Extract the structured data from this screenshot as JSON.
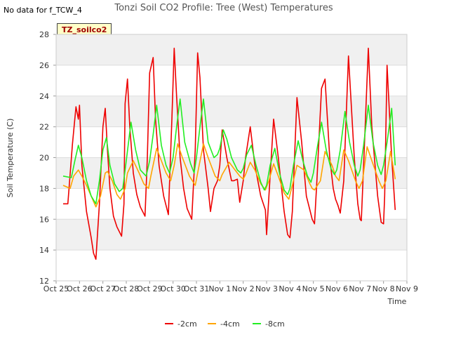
{
  "note": "No data for f_TCW_4",
  "tag": "TZ_soilco2",
  "chart_data": {
    "type": "line",
    "title": "Tonzi Soil CO2 Profile: Tree (West) Temperatures",
    "xlabel": "Time",
    "ylabel": "Soil Temperature (C)",
    "ylim": [
      12,
      28
    ],
    "yticks": [
      12,
      14,
      16,
      18,
      20,
      22,
      24,
      26,
      28
    ],
    "xlim": [
      0,
      15
    ],
    "xtick_labels": [
      "Oct 25",
      "Oct 26",
      "Oct 27",
      "Oct 28",
      "Oct 29",
      "Oct 30",
      "Oct 31",
      "Nov 1",
      "Nov 2",
      "Nov 3",
      "Nov 4",
      "Nov 5",
      "Nov 6",
      "Nov 7",
      "Nov 8",
      "Nov 9"
    ],
    "grid": true,
    "legend_position": "bottom",
    "series": [
      {
        "name": "-2cm",
        "color": "#ee0000",
        "x": [
          0.3,
          0.5,
          0.7,
          0.85,
          0.95,
          1.0,
          1.1,
          1.3,
          1.5,
          1.6,
          1.7,
          1.85,
          2.0,
          2.1,
          2.2,
          2.3,
          2.45,
          2.6,
          2.8,
          2.9,
          2.95,
          3.05,
          3.15,
          3.3,
          3.45,
          3.6,
          3.8,
          3.9,
          4.0,
          4.15,
          4.25,
          4.4,
          4.6,
          4.8,
          4.95,
          5.05,
          5.15,
          5.3,
          5.45,
          5.6,
          5.8,
          5.95,
          6.05,
          6.15,
          6.3,
          6.5,
          6.6,
          6.75,
          6.9,
          7.0,
          7.1,
          7.3,
          7.5,
          7.6,
          7.75,
          7.85,
          8.0,
          8.1,
          8.3,
          8.5,
          8.75,
          8.95,
          9.0,
          9.1,
          9.3,
          9.5,
          9.75,
          9.9,
          10.0,
          10.1,
          10.3,
          10.5,
          10.7,
          10.85,
          10.95,
          11.05,
          11.15,
          11.35,
          11.5,
          11.7,
          11.85,
          11.95,
          12.05,
          12.15,
          12.3,
          12.5,
          12.75,
          12.9,
          13.0,
          13.05,
          13.15,
          13.35,
          13.5,
          13.75,
          13.9,
          14.0,
          14.05,
          14.15,
          14.35,
          14.5
        ],
        "y": [
          17.0,
          17.0,
          20.9,
          23.3,
          22.5,
          23.4,
          19.5,
          16.5,
          14.8,
          13.8,
          13.4,
          17.0,
          22.0,
          23.2,
          20.4,
          18.0,
          16.2,
          15.5,
          14.9,
          17.0,
          23.5,
          25.1,
          22.0,
          19.0,
          17.6,
          16.8,
          16.2,
          20.0,
          25.5,
          26.5,
          22.5,
          19.5,
          17.5,
          16.3,
          22.5,
          27.1,
          24.0,
          20.0,
          18.0,
          16.7,
          16.0,
          20.5,
          26.8,
          25.2,
          20.5,
          18.0,
          16.5,
          18.0,
          18.5,
          19.5,
          21.8,
          20.0,
          18.5,
          18.5,
          18.6,
          17.1,
          18.5,
          20.0,
          22.0,
          19.5,
          17.5,
          16.6,
          15.0,
          17.5,
          22.5,
          20.0,
          16.5,
          15.0,
          14.8,
          16.5,
          23.9,
          21.0,
          17.5,
          16.6,
          16.0,
          15.7,
          18.5,
          24.5,
          25.1,
          20.0,
          18.0,
          17.3,
          16.9,
          16.4,
          18.5,
          26.6,
          20.0,
          17.0,
          16.0,
          15.9,
          19.5,
          27.1,
          22.0,
          17.5,
          15.8,
          15.7,
          17.5,
          26.0,
          20.0,
          16.6
        ]
      },
      {
        "name": "-4cm",
        "color": "#ffa500",
        "x": [
          0.3,
          0.6,
          0.75,
          0.95,
          1.1,
          1.3,
          1.5,
          1.7,
          1.9,
          2.1,
          2.2,
          2.4,
          2.6,
          2.75,
          2.95,
          3.05,
          3.3,
          3.55,
          3.75,
          3.95,
          4.05,
          4.3,
          4.5,
          4.7,
          4.9,
          5.05,
          5.2,
          5.4,
          5.7,
          5.95,
          6.05,
          6.3,
          6.5,
          6.8,
          7.0,
          7.1,
          7.4,
          7.6,
          7.85,
          8.0,
          8.1,
          8.3,
          8.5,
          8.75,
          8.95,
          9.1,
          9.3,
          9.5,
          9.75,
          9.95,
          10.1,
          10.3,
          10.6,
          10.85,
          10.95,
          11.05,
          11.3,
          11.5,
          11.8,
          11.95,
          12.1,
          12.3,
          12.5,
          12.8,
          12.95,
          13.1,
          13.3,
          13.5,
          13.8,
          13.95,
          14.1,
          14.3,
          14.5
        ],
        "y": [
          18.2,
          18.0,
          18.8,
          19.2,
          18.8,
          18.2,
          17.5,
          16.8,
          17.5,
          19.0,
          19.1,
          18.5,
          17.6,
          17.3,
          18.0,
          19.0,
          19.8,
          19.0,
          18.3,
          18.0,
          18.8,
          20.6,
          19.8,
          19.0,
          18.5,
          19.5,
          20.9,
          20.0,
          18.8,
          18.2,
          19.0,
          20.9,
          20.0,
          18.8,
          18.5,
          18.9,
          19.7,
          19.3,
          18.8,
          18.6,
          18.9,
          19.7,
          19.2,
          18.3,
          17.9,
          18.5,
          19.6,
          18.8,
          17.7,
          17.3,
          18.2,
          19.5,
          19.2,
          18.3,
          18.0,
          17.9,
          18.5,
          20.4,
          19.5,
          18.8,
          18.5,
          20.5,
          19.8,
          18.5,
          18.0,
          18.5,
          20.7,
          19.8,
          18.5,
          18.0,
          18.5,
          20.4,
          18.6
        ]
      },
      {
        "name": "-8cm",
        "color": "#22ee22",
        "x": [
          0.3,
          0.65,
          0.8,
          0.95,
          1.1,
          1.3,
          1.5,
          1.7,
          1.85,
          2.0,
          2.15,
          2.3,
          2.5,
          2.7,
          2.85,
          3.0,
          3.2,
          3.4,
          3.6,
          3.85,
          4.0,
          4.15,
          4.3,
          4.5,
          4.7,
          4.85,
          5.0,
          5.15,
          5.3,
          5.5,
          5.75,
          5.9,
          6.0,
          6.15,
          6.3,
          6.5,
          6.75,
          6.9,
          7.0,
          7.15,
          7.3,
          7.5,
          7.75,
          7.9,
          8.0,
          8.15,
          8.35,
          8.55,
          8.75,
          8.9,
          9.0,
          9.15,
          9.35,
          9.55,
          9.75,
          9.9,
          10.0,
          10.15,
          10.35,
          10.55,
          10.75,
          10.9,
          11.0,
          11.15,
          11.35,
          11.55,
          11.75,
          11.9,
          12.0,
          12.15,
          12.35,
          12.55,
          12.75,
          12.9,
          13.0,
          13.15,
          13.35,
          13.55,
          13.75,
          13.9,
          14.0,
          14.15,
          14.35,
          14.5
        ],
        "y": [
          18.8,
          18.7,
          19.8,
          20.8,
          20.0,
          18.5,
          17.5,
          17.0,
          18.5,
          20.5,
          21.3,
          19.5,
          18.3,
          17.8,
          18.0,
          19.8,
          22.3,
          20.5,
          19.2,
          18.8,
          19.8,
          21.5,
          23.4,
          20.8,
          19.5,
          19.0,
          20.0,
          22.0,
          23.8,
          21.0,
          19.6,
          19.0,
          20.0,
          22.0,
          23.8,
          21.0,
          20.0,
          20.2,
          20.6,
          21.8,
          21.2,
          20.0,
          19.2,
          19.0,
          19.3,
          20.2,
          20.8,
          19.5,
          18.4,
          17.9,
          18.2,
          19.5,
          20.6,
          19.0,
          17.9,
          17.6,
          18.0,
          19.5,
          21.1,
          19.8,
          18.8,
          18.4,
          19.0,
          20.5,
          22.3,
          20.5,
          19.3,
          18.9,
          19.2,
          20.5,
          23.0,
          21.0,
          19.5,
          18.8,
          19.2,
          20.8,
          23.4,
          21.0,
          19.5,
          18.9,
          19.5,
          21.0,
          23.2,
          19.5
        ]
      }
    ]
  }
}
